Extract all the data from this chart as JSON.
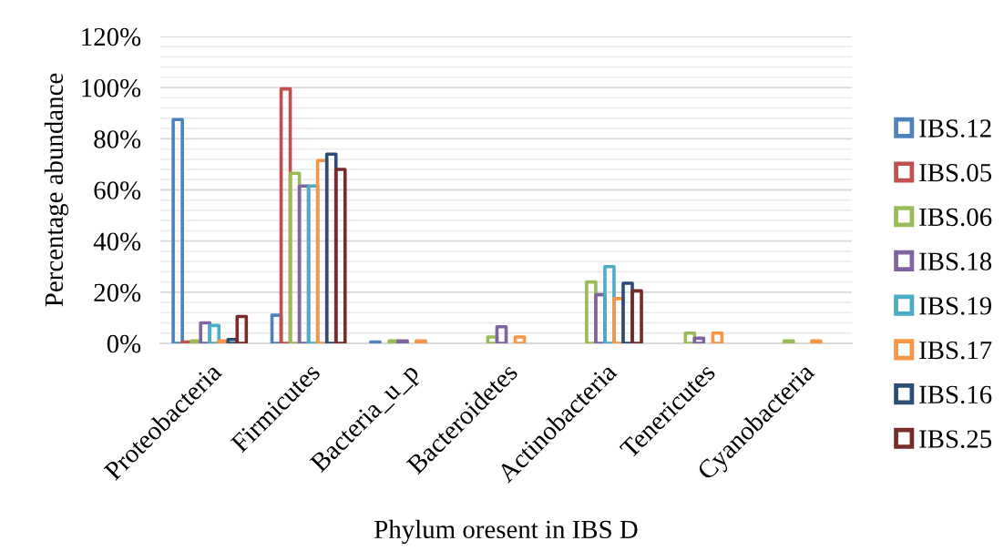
{
  "chart_data": {
    "type": "bar",
    "xlabel": "Phylum oresent in IBS D",
    "ylabel": "Percentage abundance",
    "categories": [
      "Proteobacteria",
      "Firmicutes",
      "Bacteria_u_p",
      "Bacteroidetes",
      "Actinobacteria",
      "Tenericutes",
      "Cyanobacteria"
    ],
    "series": [
      {
        "name": "IBS.12",
        "color": "#4f81bd",
        "values": [
          87.5,
          11,
          0.5,
          null,
          null,
          null,
          null
        ]
      },
      {
        "name": "IBS.05",
        "color": "#c0504d",
        "values": [
          0.5,
          99.5,
          null,
          null,
          null,
          null,
          null
        ]
      },
      {
        "name": "IBS.06",
        "color": "#9bbb59",
        "values": [
          1,
          66.5,
          1,
          2.5,
          24,
          4,
          1
        ]
      },
      {
        "name": "IBS.18",
        "color": "#8064a2",
        "values": [
          8,
          61.5,
          1,
          6.5,
          19,
          2,
          null
        ]
      },
      {
        "name": "IBS.19",
        "color": "#4bacc6",
        "values": [
          7,
          61.5,
          null,
          null,
          30,
          null,
          null
        ]
      },
      {
        "name": "IBS.17",
        "color": "#f79646",
        "values": [
          1,
          71.5,
          1,
          2.5,
          17.5,
          4,
          1
        ]
      },
      {
        "name": "IBS.16",
        "color": "#2c4d75",
        "values": [
          1.5,
          74,
          null,
          null,
          23.5,
          null,
          null
        ]
      },
      {
        "name": "IBS.25",
        "color": "#772c2a",
        "values": [
          10.5,
          68,
          null,
          null,
          20.5,
          null,
          null
        ]
      }
    ],
    "ylim": [
      0,
      120
    ],
    "yticks": [
      {
        "value": 0,
        "label": "0%"
      },
      {
        "value": 4,
        "label": null
      },
      {
        "value": 8,
        "label": null
      },
      {
        "value": 12,
        "label": null
      },
      {
        "value": 16,
        "label": null
      },
      {
        "value": 20,
        "label": "20%"
      },
      {
        "value": 24,
        "label": null
      },
      {
        "value": 28,
        "label": null
      },
      {
        "value": 32,
        "label": null
      },
      {
        "value": 36,
        "label": null
      },
      {
        "value": 40,
        "label": "40%"
      },
      {
        "value": 44,
        "label": null
      },
      {
        "value": 48,
        "label": null
      },
      {
        "value": 52,
        "label": null
      },
      {
        "value": 56,
        "label": null
      },
      {
        "value": 60,
        "label": "60%"
      },
      {
        "value": 64,
        "label": null
      },
      {
        "value": 68,
        "label": null
      },
      {
        "value": 72,
        "label": null
      },
      {
        "value": 76,
        "label": null
      },
      {
        "value": 80,
        "label": "80%"
      },
      {
        "value": 84,
        "label": null
      },
      {
        "value": 88,
        "label": null
      },
      {
        "value": 92,
        "label": null
      },
      {
        "value": 96,
        "label": null
      },
      {
        "value": 100,
        "label": "100%"
      },
      {
        "value": 104,
        "label": null
      },
      {
        "value": 108,
        "label": null
      },
      {
        "value": 112,
        "label": null
      },
      {
        "value": 116,
        "label": null
      },
      {
        "value": 120,
        "label": "120%"
      }
    ],
    "grid": "y",
    "legend": "right"
  }
}
